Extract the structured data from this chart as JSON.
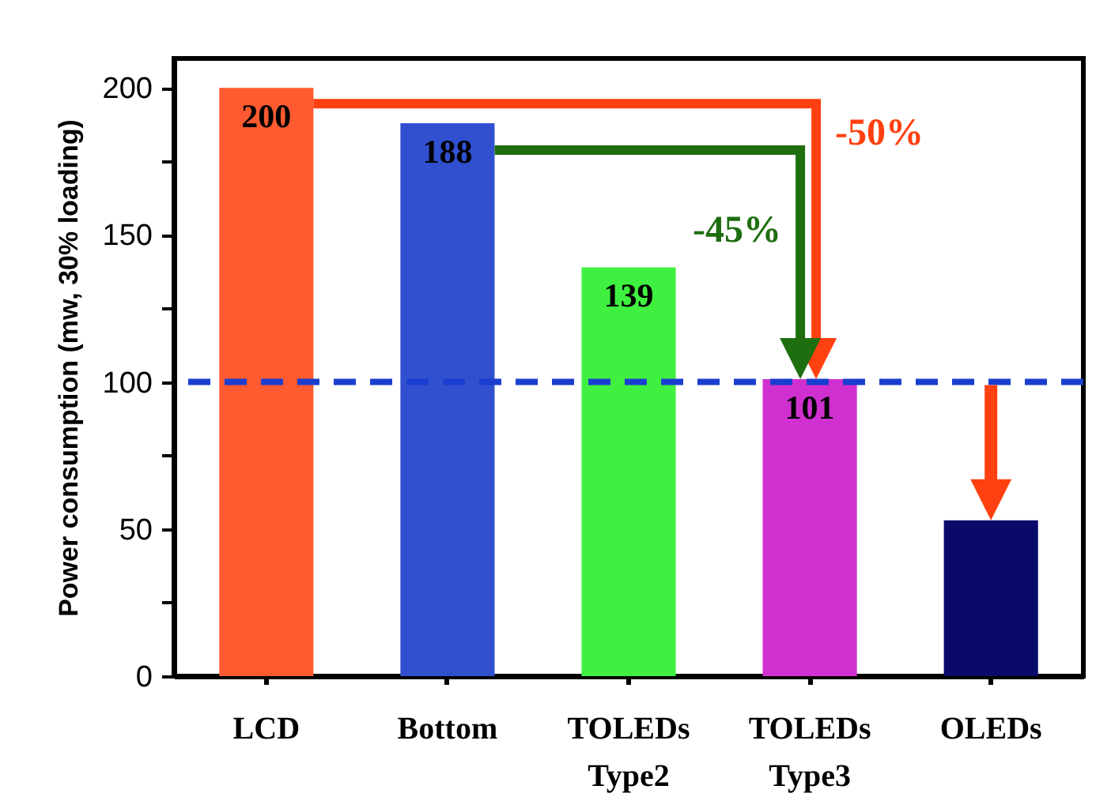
{
  "chart_data": {
    "type": "bar",
    "ylabel": "Power consumption (mw, 30% loading)",
    "categories": [
      "LCD",
      "Bottom",
      "TOLEDs\nType2",
      "TOLEDs\nType3",
      "OLEDs"
    ],
    "values": [
      200,
      188,
      139,
      101,
      53
    ],
    "colors": [
      "#ff5a30",
      "#3050d0",
      "#40f040",
      "#d030d0",
      "#0a0a6a"
    ],
    "value_labels": [
      "200",
      "188",
      "139",
      "101",
      null
    ],
    "ylim": [
      0,
      210
    ],
    "yticks": [
      0,
      {
        "value": 25,
        "label": null
      },
      50,
      {
        "value": 75,
        "label": null
      },
      100,
      {
        "value": 125,
        "label": null
      },
      150,
      {
        "value": 175,
        "label": null
      },
      200
    ],
    "grid": false,
    "ref_lines": [
      {
        "axis": "y",
        "value": 100,
        "color": "#1a3fd0",
        "line_style": "dashed"
      }
    ],
    "annotations": [
      "-50%",
      "-45%"
    ]
  }
}
